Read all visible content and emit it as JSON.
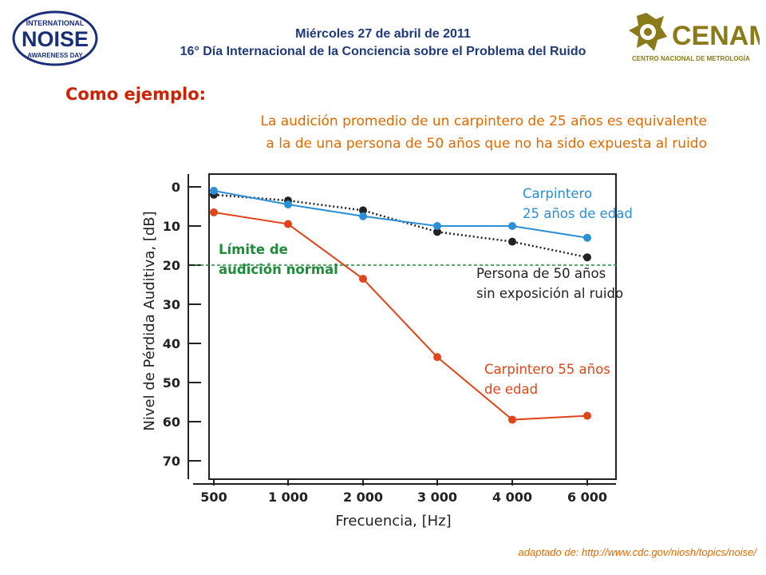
{
  "header": {
    "date": "Miércoles 27 de abril de 2011",
    "title": "16° Día Internacional de la Conciencia sobre el Problema del Ruido",
    "logo_left": {
      "line1": "INTERNATIONAL",
      "line2": "NOISE",
      "line3": "AWARENESS DAY"
    },
    "logo_right": {
      "name": "CENAM",
      "subtitle": "CENTRO NACIONAL DE METROLOGÍA"
    }
  },
  "heading": "Como ejemplo:",
  "description": [
    "La audición promedio de un carpintero de 25 años es equivalente",
    "a la de una persona de 50 años que no ha sido expuesta al ruido"
  ],
  "credit": "adaptado de: http://www.cdc.gov/niosh/topics/noise/",
  "colors": {
    "blue": "#2a8fd6",
    "black": "#222222",
    "red": "#e0451a",
    "green": "#1e8c3a",
    "heading": "#cc2200",
    "orange": "#e06a00"
  },
  "chart_data": {
    "type": "line",
    "categories": [
      "500",
      "1 000",
      "2 000",
      "3 000",
      "4 000",
      "6 000"
    ],
    "xlabel": "Frecuencia, [Hz]",
    "ylabel": "Nivel de Pérdida Auditiva, [dB]",
    "yticks": [
      "0",
      "10",
      "20",
      "30",
      "40",
      "50",
      "60",
      "70"
    ],
    "ylim": [
      0,
      70
    ],
    "y_inverted": true,
    "grid": false,
    "reference_line": {
      "value": 20,
      "label_lines": [
        "Límite de",
        "audición normal"
      ]
    },
    "series": [
      {
        "key": "blue",
        "label_lines": [
          "Carpintero",
          "25 años de edad"
        ],
        "values": [
          1,
          4.5,
          7.5,
          10,
          10,
          13
        ],
        "style": "solid"
      },
      {
        "key": "black",
        "label_lines": [
          "Persona de 50 años",
          "sin exposición al ruido"
        ],
        "values": [
          2,
          3.5,
          6,
          11.5,
          14,
          18
        ],
        "style": "dotted"
      },
      {
        "key": "red",
        "label_lines": [
          "Carpintero 55 años",
          "de edad"
        ],
        "values": [
          6.5,
          9.5,
          23.5,
          43.5,
          59.5,
          58.5
        ],
        "style": "solid"
      }
    ]
  }
}
